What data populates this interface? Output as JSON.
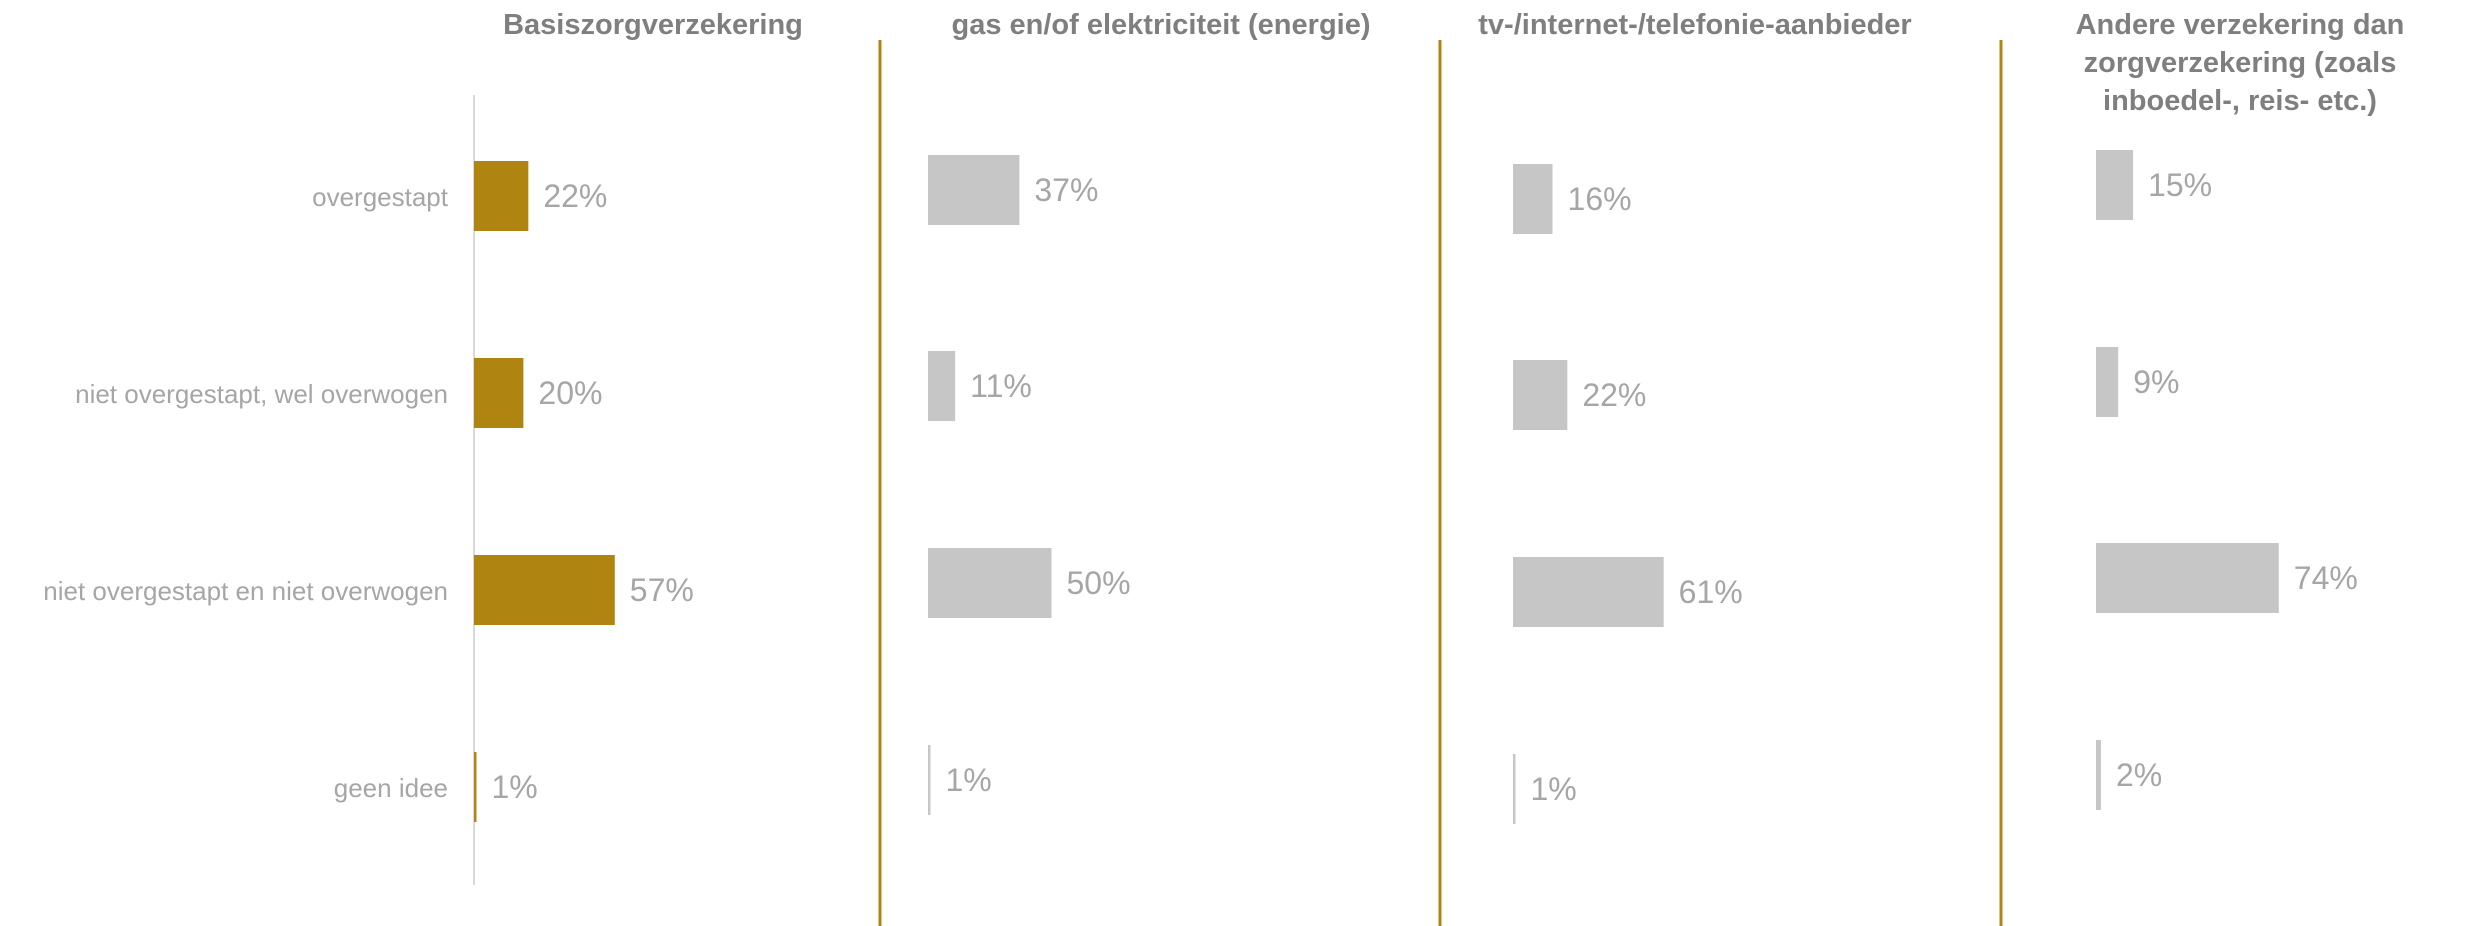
{
  "chart_data": {
    "type": "bar",
    "orientation": "horizontal",
    "categories": [
      "overgestapt",
      "niet overgestapt, wel overwogen",
      "niet overgestapt en niet overwogen",
      "geen idee"
    ],
    "series": [
      {
        "name": "Basiszorgverzekering",
        "values": [
          22,
          20,
          57,
          1
        ],
        "labels": [
          "22%",
          "20%",
          "57%",
          "1%"
        ],
        "color": "#b08410"
      },
      {
        "name": "gas en/of elektriciteit (energie)",
        "values": [
          37,
          11,
          50,
          1
        ],
        "labels": [
          "37%",
          "11%",
          "50%",
          "1%"
        ],
        "color": "#c6c6c6"
      },
      {
        "name": "tv-/internet-/telefonie-aanbieder",
        "values": [
          16,
          22,
          61,
          1
        ],
        "labels": [
          "16%",
          "22%",
          "61%",
          "1%"
        ],
        "color": "#c6c6c6"
      },
      {
        "name": "Andere verzekering dan zorgverzekering (zoals inboedel-, reis- etc.)",
        "values": [
          15,
          9,
          74,
          2
        ],
        "labels": [
          "15%",
          "9%",
          "74%",
          "2%"
        ],
        "color": "#c6c6c6"
      }
    ],
    "title_lines": [
      [
        "Basiszorgverzekering"
      ],
      [
        "gas en/of elektriciteit (energie)"
      ],
      [
        "tv-/internet-/telefonie-aanbieder"
      ],
      [
        "Andere verzekering dan",
        "zorgverzekering (zoals",
        "inboedel-, reis- etc.)"
      ]
    ],
    "unit": "%",
    "xlim": [
      0,
      100
    ],
    "legend": "none",
    "grid": false,
    "divider_color": "#b08410",
    "axis_color": "#d9d9d9"
  }
}
